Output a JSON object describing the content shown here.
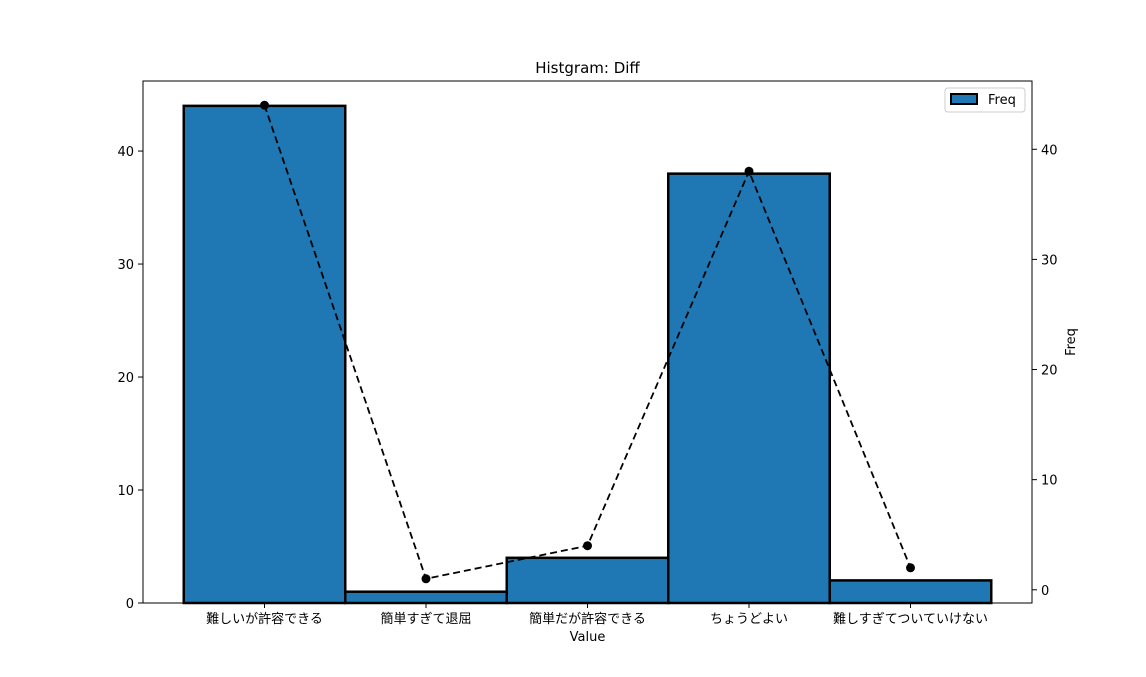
{
  "chart_data": {
    "type": "bar",
    "title": "Histgram: Diff",
    "xlabel": "Value",
    "ylabel": "",
    "ylabel_right": "Freq",
    "categories": [
      "難しいが許容できる",
      "簡単すぎて退屈",
      "簡単だが許容できる",
      "ちょうどよい",
      "難しすぎてついていけない"
    ],
    "series": [
      {
        "name": "Freq",
        "kind": "bar",
        "values": [
          44,
          1,
          4,
          38,
          2
        ],
        "color": "#1f77b4",
        "edgecolor": "#000000"
      },
      {
        "kind": "line",
        "style": "dashed",
        "marker": "circle",
        "values": [
          44,
          1,
          4,
          38,
          2
        ],
        "color": "#000000"
      }
    ],
    "ylim": [
      0,
      46.2
    ],
    "ylim_right": [
      -1.2,
      46.2
    ],
    "yticks": [
      0,
      10,
      20,
      30,
      40
    ],
    "yticks_right": [
      0,
      10,
      20,
      30,
      40
    ],
    "legend": {
      "position": "top-right",
      "entries": [
        "Freq"
      ]
    },
    "grid": false
  }
}
